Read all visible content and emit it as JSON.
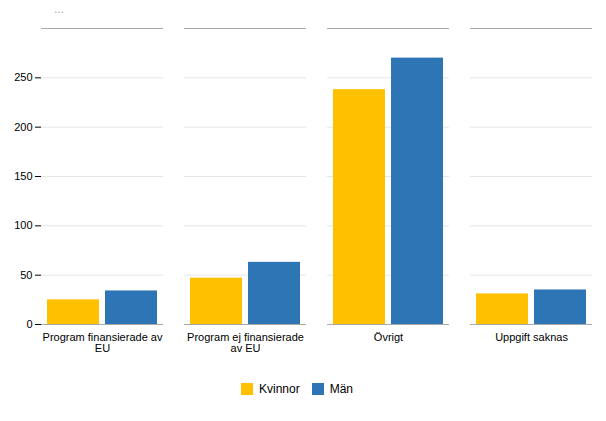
{
  "chart_data": {
    "type": "bar",
    "annotation": "...",
    "categories": [
      "Program finansierade av\nEU",
      "Program ej finansierade\nav EU",
      "Övrigt",
      "Uppgift saknas"
    ],
    "series": [
      {
        "name": "Kvinnor",
        "color": "#FFC000",
        "values": [
          25,
          47,
          238,
          31
        ]
      },
      {
        "name": "Män",
        "color": "#2E75B6",
        "values": [
          34,
          63,
          270,
          35
        ]
      }
    ],
    "ylim": [
      0,
      300
    ],
    "yticks": [
      0,
      50,
      100,
      150,
      200,
      250
    ],
    "grid": true,
    "legend": "bottom"
  }
}
